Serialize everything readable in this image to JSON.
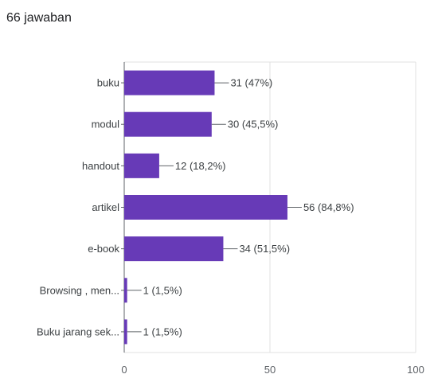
{
  "summary": "66 jawaban",
  "chart_data": {
    "type": "bar",
    "orientation": "horizontal",
    "categories": [
      "buku",
      "modul",
      "handout",
      "artikel",
      "e-book",
      "Browsing , men...",
      "Buku jarang sek..."
    ],
    "values": [
      31,
      30,
      12,
      56,
      34,
      1,
      1
    ],
    "value_labels": [
      "31 (47%)",
      "30 (45,5%)",
      "12 (18,2%)",
      "56 (84,8%)",
      "34 (51,5%)",
      "1 (1,5%)",
      "1 (1,5%)"
    ],
    "xlim": [
      0,
      100
    ],
    "xticks": [
      0,
      50,
      100
    ],
    "grid": true,
    "bar_color": "#673ab7",
    "title": "",
    "xlabel": "",
    "ylabel": ""
  }
}
